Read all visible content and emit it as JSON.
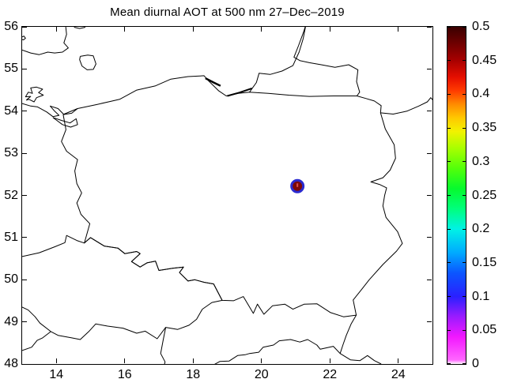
{
  "title": "Mean diurnal AOT at 500 nm 27–Dec–2019",
  "axes": {
    "xlim": [
      13,
      25
    ],
    "ylim": [
      48,
      56
    ],
    "xtick_values": [
      14,
      16,
      18,
      20,
      22,
      24
    ],
    "xtick_labels": [
      "14",
      "16",
      "18",
      "20",
      "22",
      "24"
    ],
    "ytick_values": [
      48,
      49,
      50,
      51,
      52,
      53,
      54,
      55,
      56
    ],
    "ytick_labels": [
      "48",
      "49",
      "50",
      "51",
      "52",
      "53",
      "54",
      "55",
      "56"
    ],
    "line_color": "#000000",
    "background": "#ffffff"
  },
  "colorbar": {
    "range": [
      0,
      0.5
    ],
    "tick_values": [
      0,
      0.05,
      0.1,
      0.15,
      0.2,
      0.25,
      0.3,
      0.35,
      0.4,
      0.45,
      0.5
    ],
    "tick_labels": [
      "0",
      "0.05",
      "0.1",
      "0.15",
      "0.2",
      "0.25",
      "0.3",
      "0.35",
      "0.4",
      "0.45",
      "0.5"
    ],
    "gradient": [
      {
        "p": 0,
        "c": "#ffffff"
      },
      {
        "p": 1.2,
        "c": "#ff66ff"
      },
      {
        "p": 8,
        "c": "#f218ff"
      },
      {
        "p": 14,
        "c": "#9b1bff"
      },
      {
        "p": 20,
        "c": "#2a20ff"
      },
      {
        "p": 27,
        "c": "#0b56ff"
      },
      {
        "p": 33,
        "c": "#00aaff"
      },
      {
        "p": 40,
        "c": "#00f2e6"
      },
      {
        "p": 46,
        "c": "#00ff7d"
      },
      {
        "p": 52,
        "c": "#06fa2e"
      },
      {
        "p": 58,
        "c": "#52ff0a"
      },
      {
        "p": 64,
        "c": "#a8ff00"
      },
      {
        "p": 69,
        "c": "#f2f200"
      },
      {
        "p": 73,
        "c": "#ffc800"
      },
      {
        "p": 77,
        "c": "#ff8c00"
      },
      {
        "p": 81,
        "c": "#ff3c00"
      },
      {
        "p": 85,
        "c": "#e60f00"
      },
      {
        "p": 90,
        "c": "#a80000"
      },
      {
        "p": 95,
        "c": "#700000"
      },
      {
        "p": 100,
        "c": "#3a0000"
      }
    ]
  },
  "chart_data": {
    "type": "scatter",
    "title": "Mean diurnal AOT at 500 nm 27–Dec–2019",
    "xlabel": "",
    "ylabel": "",
    "xlim": [
      13,
      25
    ],
    "ylim": [
      48,
      56
    ],
    "colorbar_label": "",
    "colorbar_range": [
      0,
      0.5
    ],
    "points": [
      {
        "lon": 21.05,
        "lat": 52.22,
        "value": 0.5,
        "marker_face": "#7d0808",
        "marker_edge": "#2a2ad0"
      }
    ]
  },
  "marker_style": {
    "radius": 7.5,
    "edge_width": 3,
    "inner_mark_color": "#e05050"
  },
  "map_layers": {
    "sweden-coast": {
      "w": 1,
      "pts": [
        [
          13.0,
          55.45
        ],
        [
          13.25,
          55.38
        ],
        [
          13.5,
          55.34
        ],
        [
          13.75,
          55.4
        ],
        [
          13.95,
          55.38
        ],
        [
          14.18,
          55.4
        ],
        [
          14.35,
          55.5
        ],
        [
          14.22,
          55.62
        ],
        [
          14.3,
          55.82
        ],
        [
          14.27,
          56.05
        ]
      ]
    },
    "sweden-coast-top": {
      "w": 1,
      "pts": [
        [
          14.52,
          55.99
        ],
        [
          14.68,
          55.96
        ],
        [
          14.85,
          55.99
        ]
      ]
    },
    "small-island": {
      "w": 1,
      "pts": [
        [
          12.98,
          55.75
        ],
        [
          13.05,
          55.78
        ],
        [
          13.1,
          55.73
        ],
        [
          13.04,
          55.69
        ],
        [
          12.97,
          55.71
        ],
        [
          12.98,
          55.75
        ]
      ]
    },
    "bornholm": {
      "w": 1,
      "pts": [
        [
          14.7,
          55.3
        ],
        [
          14.92,
          55.33
        ],
        [
          15.08,
          55.31
        ],
        [
          15.16,
          55.12
        ],
        [
          15.08,
          54.99
        ],
        [
          14.9,
          54.98
        ],
        [
          14.75,
          55.07
        ],
        [
          14.68,
          55.22
        ],
        [
          14.7,
          55.3
        ]
      ]
    },
    "ruegen": {
      "w": 1,
      "pts": [
        [
          13.12,
          54.26
        ],
        [
          13.25,
          54.35
        ],
        [
          13.1,
          54.34
        ],
        [
          13.18,
          54.45
        ],
        [
          13.3,
          54.42
        ],
        [
          13.25,
          54.55
        ],
        [
          13.42,
          54.57
        ],
        [
          13.6,
          54.52
        ],
        [
          13.48,
          54.44
        ],
        [
          13.62,
          54.38
        ],
        [
          13.42,
          54.32
        ],
        [
          13.35,
          54.22
        ],
        [
          13.2,
          54.28
        ],
        [
          13.12,
          54.26
        ]
      ]
    },
    "german-coast": {
      "w": 1,
      "pts": [
        [
          13.0,
          54.18
        ],
        [
          13.25,
          54.12
        ],
        [
          13.45,
          54.1
        ],
        [
          13.72,
          53.98
        ],
        [
          13.9,
          53.87
        ],
        [
          14.08,
          53.9
        ],
        [
          13.95,
          54.0
        ],
        [
          13.82,
          54.12
        ],
        [
          14.05,
          54.06
        ],
        [
          14.22,
          53.92
        ],
        [
          14.45,
          53.95
        ],
        [
          14.62,
          54.06
        ]
      ]
    },
    "szczecin-lagoon": {
      "w": 1,
      "pts": [
        [
          13.9,
          53.85
        ],
        [
          14.15,
          53.78
        ],
        [
          14.4,
          53.72
        ],
        [
          14.58,
          53.82
        ],
        [
          14.62,
          53.68
        ],
        [
          14.42,
          53.62
        ],
        [
          14.18,
          53.68
        ],
        [
          13.98,
          53.8
        ],
        [
          13.9,
          53.85
        ]
      ]
    },
    "poland": {
      "w": 1,
      "pts": [
        [
          14.2,
          53.92
        ],
        [
          14.62,
          54.06
        ],
        [
          15.2,
          54.16
        ],
        [
          15.85,
          54.28
        ],
        [
          16.35,
          54.5
        ],
        [
          16.9,
          54.6
        ],
        [
          17.35,
          54.76
        ],
        [
          17.85,
          54.82
        ],
        [
          18.32,
          54.84
        ],
        [
          18.45,
          54.72
        ],
        [
          18.75,
          54.48
        ],
        [
          18.97,
          54.36
        ],
        [
          19.32,
          54.42
        ],
        [
          19.65,
          54.45
        ],
        [
          20.2,
          54.42
        ],
        [
          20.8,
          54.38
        ],
        [
          21.4,
          54.35
        ],
        [
          22.1,
          54.36
        ],
        [
          22.79,
          54.36
        ],
        [
          23.05,
          54.3
        ],
        [
          23.3,
          54.24
        ],
        [
          23.5,
          54.13
        ],
        [
          23.48,
          53.96
        ],
        [
          23.62,
          53.58
        ],
        [
          23.88,
          53.2
        ],
        [
          23.92,
          52.88
        ],
        [
          23.76,
          52.6
        ],
        [
          23.55,
          52.42
        ],
        [
          23.2,
          52.32
        ],
        [
          23.45,
          52.26
        ],
        [
          23.66,
          52.18
        ],
        [
          23.6,
          52.0
        ],
        [
          23.55,
          51.75
        ],
        [
          23.64,
          51.48
        ],
        [
          23.98,
          51.14
        ],
        [
          24.12,
          50.86
        ],
        [
          23.95,
          50.68
        ],
        [
          23.55,
          50.36
        ],
        [
          23.15,
          50.0
        ],
        [
          22.92,
          49.76
        ],
        [
          22.68,
          49.52
        ],
        [
          22.77,
          49.16
        ],
        [
          22.4,
          49.12
        ],
        [
          22.02,
          49.22
        ],
        [
          21.62,
          49.43
        ],
        [
          21.25,
          49.42
        ],
        [
          20.92,
          49.3
        ],
        [
          20.68,
          49.42
        ],
        [
          20.32,
          49.38
        ],
        [
          20.07,
          49.18
        ],
        [
          19.88,
          49.42
        ],
        [
          19.76,
          49.2
        ],
        [
          19.47,
          49.6
        ],
        [
          19.18,
          49.5
        ],
        [
          18.85,
          49.51
        ],
        [
          18.6,
          49.9
        ],
        [
          18.32,
          49.94
        ],
        [
          18.05,
          50.0
        ],
        [
          17.85,
          49.97
        ],
        [
          17.6,
          50.17
        ],
        [
          17.72,
          50.3
        ],
        [
          17.4,
          50.27
        ],
        [
          17.0,
          50.22
        ],
        [
          16.9,
          50.44
        ],
        [
          16.65,
          50.4
        ],
        [
          16.45,
          50.3
        ],
        [
          16.2,
          50.43
        ],
        [
          16.45,
          50.62
        ],
        [
          16.35,
          50.67
        ],
        [
          16.0,
          50.62
        ],
        [
          15.8,
          50.75
        ],
        [
          15.4,
          50.8
        ],
        [
          15.0,
          51.0
        ],
        [
          14.82,
          50.87
        ],
        [
          14.98,
          51.33
        ],
        [
          14.72,
          51.55
        ],
        [
          14.6,
          51.82
        ],
        [
          14.74,
          52.06
        ],
        [
          14.6,
          52.28
        ],
        [
          14.54,
          52.58
        ],
        [
          14.62,
          52.85
        ],
        [
          14.3,
          53.05
        ],
        [
          14.15,
          53.28
        ],
        [
          14.28,
          53.56
        ],
        [
          14.2,
          53.92
        ]
      ]
    },
    "hel-peninsula": {
      "w": 2.4,
      "pts": [
        [
          18.36,
          54.78
        ],
        [
          18.6,
          54.68
        ],
        [
          18.8,
          54.6
        ]
      ]
    },
    "vistula-spit": {
      "w": 2,
      "pts": [
        [
          19.0,
          54.36
        ],
        [
          19.35,
          54.44
        ],
        [
          19.72,
          54.54
        ]
      ]
    },
    "kaliningrad-curonian": {
      "w": 1,
      "pts": [
        [
          19.65,
          54.45
        ],
        [
          19.85,
          54.68
        ],
        [
          19.93,
          54.9
        ],
        [
          20.25,
          54.87
        ],
        [
          20.6,
          54.95
        ],
        [
          20.92,
          55.08
        ],
        [
          21.1,
          55.4
        ],
        [
          21.22,
          55.72
        ],
        [
          21.3,
          56.06
        ],
        [
          21.24,
          55.9
        ],
        [
          21.08,
          55.55
        ],
        [
          20.95,
          55.28
        ],
        [
          21.12,
          55.2
        ],
        [
          21.4,
          55.15
        ],
        [
          21.75,
          55.1
        ],
        [
          22.15,
          55.04
        ],
        [
          22.55,
          55.1
        ],
        [
          22.82,
          54.98
        ],
        [
          22.78,
          54.7
        ],
        [
          22.87,
          54.45
        ],
        [
          22.79,
          54.36
        ]
      ]
    },
    "lithuania-belarus-border": {
      "w": 1,
      "pts": [
        [
          23.48,
          53.96
        ],
        [
          23.85,
          53.93
        ],
        [
          24.25,
          54.0
        ],
        [
          24.6,
          54.12
        ],
        [
          24.85,
          54.22
        ],
        [
          24.95,
          54.32
        ],
        [
          25.06,
          54.22
        ]
      ]
    },
    "czech": {
      "w": 1,
      "pts": [
        [
          13.0,
          50.55
        ],
        [
          13.5,
          50.64
        ],
        [
          13.95,
          50.78
        ],
        [
          14.25,
          50.88
        ],
        [
          14.3,
          51.05
        ],
        [
          14.6,
          50.93
        ],
        [
          14.82,
          50.87
        ],
        [
          15.0,
          51.0
        ],
        [
          15.4,
          50.8
        ],
        [
          15.8,
          50.75
        ],
        [
          16.0,
          50.62
        ],
        [
          16.35,
          50.67
        ],
        [
          16.45,
          50.62
        ],
        [
          16.2,
          50.43
        ],
        [
          16.45,
          50.3
        ],
        [
          16.65,
          50.4
        ],
        [
          16.9,
          50.44
        ],
        [
          17.0,
          50.22
        ],
        [
          17.4,
          50.27
        ],
        [
          17.72,
          50.3
        ],
        [
          17.6,
          50.17
        ],
        [
          17.85,
          49.97
        ],
        [
          18.05,
          50.0
        ],
        [
          18.32,
          49.94
        ],
        [
          18.6,
          49.9
        ],
        [
          18.85,
          49.51
        ],
        [
          18.55,
          49.46
        ],
        [
          18.27,
          49.3
        ],
        [
          18.1,
          49.06
        ],
        [
          17.88,
          48.92
        ],
        [
          17.55,
          48.82
        ],
        [
          17.2,
          48.87
        ],
        [
          16.95,
          48.6
        ],
        [
          16.6,
          48.78
        ],
        [
          16.35,
          48.73
        ],
        [
          15.95,
          48.85
        ],
        [
          15.5,
          48.9
        ],
        [
          15.15,
          48.95
        ],
        [
          14.95,
          48.77
        ],
        [
          14.7,
          48.58
        ],
        [
          14.45,
          48.62
        ],
        [
          14.05,
          48.68
        ],
        [
          13.84,
          48.77
        ],
        [
          13.52,
          48.97
        ],
        [
          13.38,
          49.12
        ],
        [
          13.18,
          49.28
        ],
        [
          13.0,
          49.35
        ]
      ]
    },
    "slovakia-austria-border": {
      "w": 1,
      "pts": [
        [
          17.2,
          48.87
        ],
        [
          17.12,
          48.55
        ],
        [
          17.05,
          48.25
        ],
        [
          17.18,
          48.05
        ],
        [
          17.15,
          47.95
        ]
      ]
    },
    "germany-austria-border": {
      "w": 1,
      "pts": [
        [
          13.0,
          48.32
        ],
        [
          13.28,
          48.4
        ],
        [
          13.44,
          48.56
        ],
        [
          13.6,
          48.62
        ],
        [
          13.84,
          48.77
        ]
      ]
    },
    "slovakia-hungary-border": {
      "w": 1,
      "pts": [
        [
          18.6,
          47.98
        ],
        [
          18.78,
          48.06
        ],
        [
          19.05,
          48.07
        ],
        [
          19.3,
          48.2
        ],
        [
          19.52,
          48.22
        ],
        [
          19.65,
          48.25
        ],
        [
          19.92,
          48.28
        ],
        [
          20.05,
          48.4
        ],
        [
          20.35,
          48.45
        ],
        [
          20.52,
          48.55
        ],
        [
          20.85,
          48.58
        ],
        [
          21.12,
          48.52
        ],
        [
          21.35,
          48.58
        ],
        [
          21.62,
          48.45
        ],
        [
          21.72,
          48.35
        ],
        [
          22.1,
          48.42
        ],
        [
          22.3,
          48.25
        ],
        [
          22.6,
          48.1
        ],
        [
          22.88,
          48.08
        ],
        [
          23.1,
          48.2
        ],
        [
          23.3,
          48.08
        ],
        [
          23.5,
          48.0
        ]
      ]
    },
    "slovakia-ukraine-border": {
      "w": 1,
      "pts": [
        [
          22.77,
          49.16
        ],
        [
          22.62,
          48.95
        ],
        [
          22.48,
          48.68
        ],
        [
          22.38,
          48.45
        ],
        [
          22.3,
          48.25
        ]
      ]
    }
  }
}
